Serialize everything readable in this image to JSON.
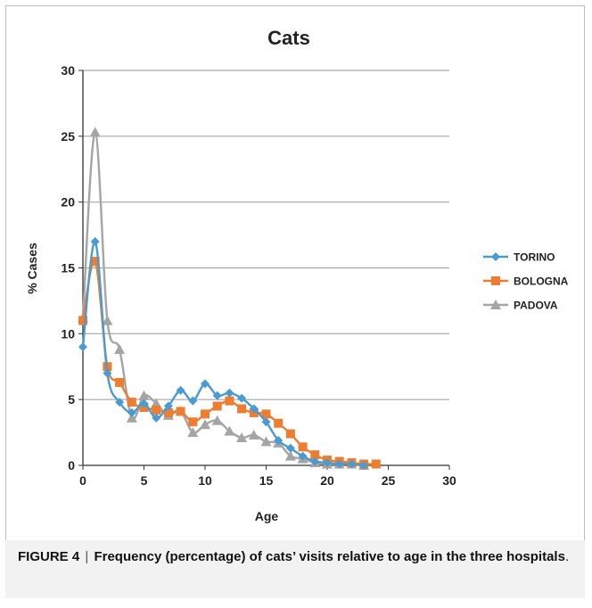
{
  "chart_data": {
    "type": "line",
    "title": "Cats",
    "xlabel": "Age",
    "ylabel": "% Cases",
    "xlim": [
      0,
      30
    ],
    "ylim": [
      0,
      30
    ],
    "xticks": [
      0,
      5,
      10,
      15,
      20,
      25,
      30
    ],
    "yticks": [
      0,
      5,
      10,
      15,
      20,
      25,
      30
    ],
    "grid": "horizontal",
    "legend_position": "right",
    "series": [
      {
        "name": "TORINO",
        "color": "#4a9bd2",
        "marker": "diamond",
        "x": [
          0,
          1,
          2,
          3,
          4,
          5,
          6,
          7,
          8,
          9,
          10,
          11,
          12,
          13,
          14,
          15,
          16,
          17,
          18,
          19,
          20,
          21,
          22,
          23
        ],
        "y": [
          9.0,
          17.0,
          7.0,
          4.8,
          4.0,
          4.7,
          3.6,
          4.5,
          5.7,
          4.9,
          6.2,
          5.3,
          5.5,
          5.1,
          4.3,
          3.3,
          1.9,
          1.3,
          0.7,
          0.3,
          0.2,
          0.1,
          0.1,
          0.0
        ]
      },
      {
        "name": "BOLOGNA",
        "color": "#ed7d31",
        "marker": "square",
        "x": [
          0,
          1,
          2,
          3,
          4,
          5,
          6,
          7,
          8,
          9,
          10,
          11,
          12,
          13,
          14,
          15,
          16,
          17,
          18,
          19,
          20,
          21,
          22,
          23,
          24
        ],
        "y": [
          11.0,
          15.5,
          7.5,
          6.3,
          4.8,
          4.4,
          4.2,
          4.0,
          4.1,
          3.3,
          3.9,
          4.5,
          4.9,
          4.3,
          4.0,
          3.9,
          3.2,
          2.4,
          1.4,
          0.8,
          0.4,
          0.3,
          0.2,
          0.1,
          0.1
        ]
      },
      {
        "name": "PADOVA",
        "color": "#a5a5a5",
        "marker": "triangle",
        "x": [
          0,
          1,
          2,
          3,
          4,
          5,
          6,
          7,
          8,
          9,
          10,
          11,
          12,
          13,
          14,
          15,
          16,
          17,
          18,
          19,
          20,
          21,
          22,
          23
        ],
        "y": [
          11.2,
          25.3,
          11.0,
          8.8,
          3.6,
          5.3,
          4.7,
          3.8,
          4.1,
          2.5,
          3.1,
          3.4,
          2.6,
          2.1,
          2.3,
          1.8,
          1.7,
          0.7,
          0.5,
          0.2,
          0.1,
          0.1,
          0.1,
          0.0
        ]
      }
    ]
  },
  "caption": {
    "label": "FIGURE 4",
    "separator": "|",
    "text": "Frequency (percentage) of cats’ visits relative to age in the three hospitals",
    "end": "."
  }
}
